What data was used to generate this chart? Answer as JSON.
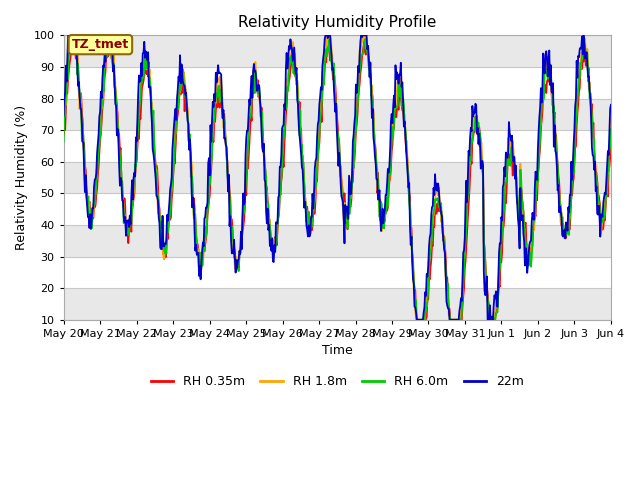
{
  "title": "Relativity Humidity Profile",
  "xlabel": "Time",
  "ylabel": "Relativity Humidity (%)",
  "ylim": [
    10,
    100
  ],
  "yticks": [
    10,
    20,
    30,
    40,
    50,
    60,
    70,
    80,
    90,
    100
  ],
  "xtick_labels": [
    "May 20",
    "May 21",
    "May 22",
    "May 23",
    "May 24",
    "May 25",
    "May 26",
    "May 27",
    "May 28",
    "May 29",
    "May 30",
    "May 31",
    "Jun 1",
    "Jun 2",
    "Jun 3",
    "Jun 4"
  ],
  "annotation_text": "TZ_tmet",
  "annotation_color": "#8B0000",
  "annotation_box_color": "#FFFF99",
  "annotation_box_edge": "#8B6914",
  "series_colors": [
    "#FF0000",
    "#FFA500",
    "#00CC00",
    "#0000CC"
  ],
  "series_labels": [
    "RH 0.35m",
    "RH 1.8m",
    "RH 6.0m",
    "22m"
  ],
  "background_color": "#FFFFFF",
  "plot_bg_color": "#FFFFFF",
  "grid_color": "#C8C8C8",
  "alt_band_color": "#E8E8E8",
  "title_fontsize": 11,
  "axis_fontsize": 9,
  "tick_fontsize": 8,
  "legend_fontsize": 9,
  "line_width": 1.3
}
